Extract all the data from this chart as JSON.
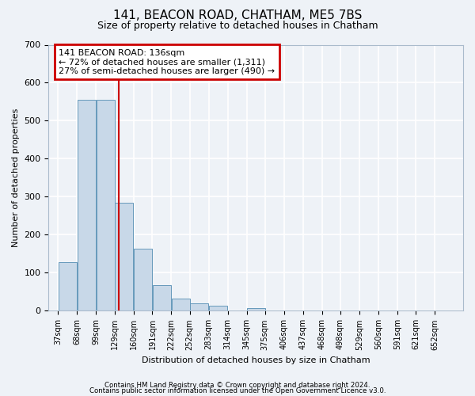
{
  "title": "141, BEACON ROAD, CHATHAM, ME5 7BS",
  "subtitle": "Size of property relative to detached houses in Chatham",
  "xlabel": "Distribution of detached houses by size in Chatham",
  "ylabel": "Number of detached properties",
  "bins": [
    37,
    68,
    99,
    129,
    160,
    191,
    222,
    252,
    283,
    314,
    345,
    375,
    406,
    437,
    468,
    498,
    529,
    560,
    591,
    621,
    652
  ],
  "bar_heights": [
    128,
    555,
    555,
    285,
    163,
    68,
    33,
    20,
    14,
    0,
    8,
    0,
    0,
    0,
    0,
    0,
    0,
    0,
    0,
    0,
    0
  ],
  "bin_width": 31,
  "bar_color": "#c8d8e8",
  "bar_edge_color": "#6699bb",
  "vline_x": 136,
  "vline_color": "#cc0000",
  "ylim": [
    0,
    700
  ],
  "yticks": [
    0,
    100,
    200,
    300,
    400,
    500,
    600,
    700
  ],
  "annotation_text": "141 BEACON ROAD: 136sqm\n← 72% of detached houses are smaller (1,311)\n27% of semi-detached houses are larger (490) →",
  "annotation_box_color": "#cc0000",
  "footnote1": "Contains HM Land Registry data © Crown copyright and database right 2024.",
  "footnote2": "Contains public sector information licensed under the Open Government Licence v3.0.",
  "background_color": "#eef2f7",
  "grid_color": "#ffffff",
  "title_fontsize": 11,
  "subtitle_fontsize": 9,
  "ylabel_fontsize": 8,
  "xlabel_fontsize": 8
}
